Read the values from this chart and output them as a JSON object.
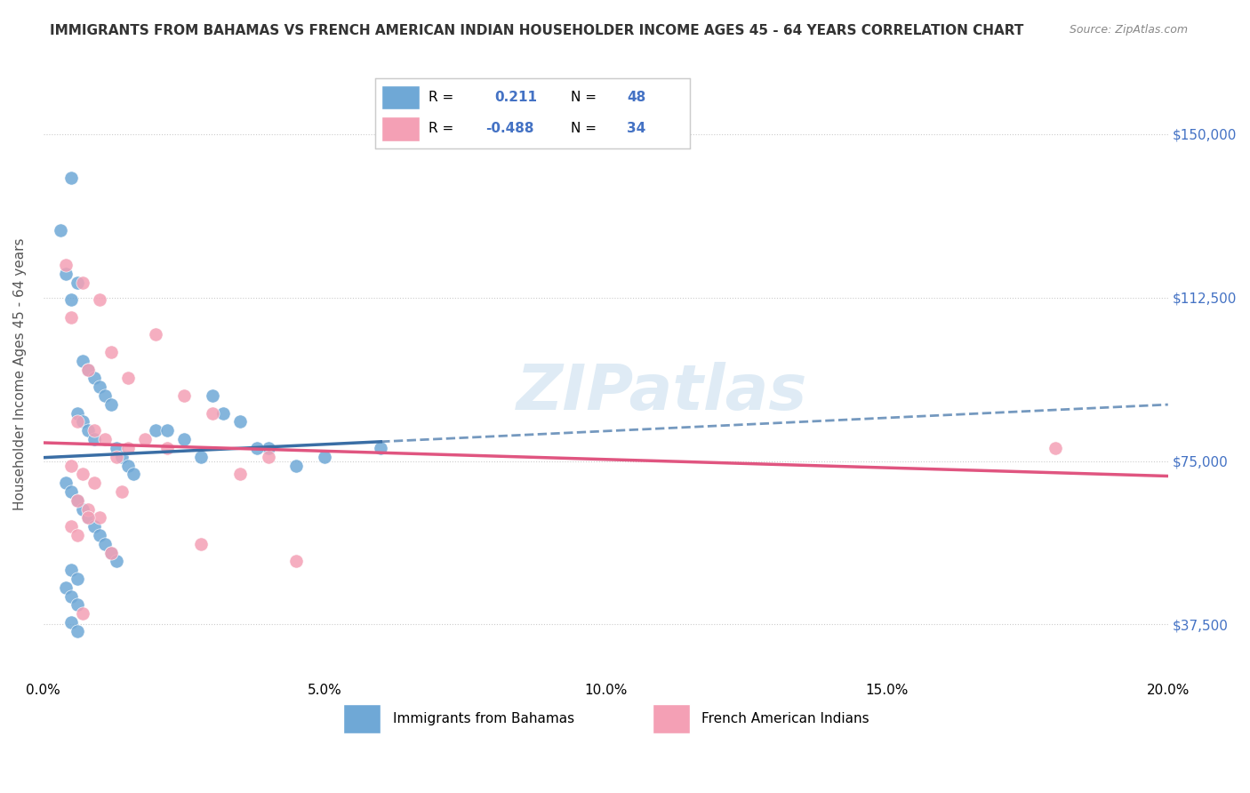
{
  "title": "IMMIGRANTS FROM BAHAMAS VS FRENCH AMERICAN INDIAN HOUSEHOLDER INCOME AGES 45 - 64 YEARS CORRELATION CHART",
  "source": "Source: ZipAtlas.com",
  "ylabel": "Householder Income Ages 45 - 64 years",
  "xlabel_ticks": [
    "0.0%",
    "5.0%",
    "10.0%",
    "15.0%",
    "20.0%"
  ],
  "xlabel_vals": [
    0.0,
    5.0,
    10.0,
    15.0,
    20.0
  ],
  "yticks": [
    37500,
    75000,
    112500,
    150000
  ],
  "ytick_labels": [
    "$37,500",
    "$75,000",
    "$112,500",
    "$150,000"
  ],
  "xmin": 0.0,
  "xmax": 20.0,
  "ymin": 25000,
  "ymax": 165000,
  "blue_R": 0.211,
  "blue_N": 48,
  "pink_R": -0.488,
  "pink_N": 34,
  "blue_color": "#6fa8d6",
  "pink_color": "#f4a0b5",
  "blue_line_color": "#3a6ea5",
  "pink_line_color": "#e05580",
  "watermark": "ZIPatlas",
  "background_color": "#ffffff",
  "grid_color": "#cccccc",
  "title_color": "#333333",
  "axis_label_color": "#555555",
  "blue_scatter_x": [
    0.5,
    0.3,
    0.4,
    0.6,
    0.5,
    0.7,
    0.8,
    0.9,
    1.0,
    1.1,
    1.2,
    0.6,
    0.7,
    0.8,
    0.9,
    1.3,
    1.4,
    1.5,
    1.6,
    2.0,
    2.5,
    3.0,
    3.5,
    4.0,
    5.0,
    6.0,
    0.4,
    0.5,
    0.6,
    0.7,
    0.8,
    0.9,
    1.0,
    1.1,
    1.2,
    1.3,
    0.5,
    0.6,
    2.2,
    2.8,
    3.8,
    4.5,
    0.4,
    0.5,
    0.6,
    3.2,
    0.5,
    0.6
  ],
  "blue_scatter_y": [
    140000,
    128000,
    118000,
    116000,
    112000,
    98000,
    96000,
    94000,
    92000,
    90000,
    88000,
    86000,
    84000,
    82000,
    80000,
    78000,
    76000,
    74000,
    72000,
    82000,
    80000,
    90000,
    84000,
    78000,
    76000,
    78000,
    70000,
    68000,
    66000,
    64000,
    62000,
    60000,
    58000,
    56000,
    54000,
    52000,
    50000,
    48000,
    82000,
    76000,
    78000,
    74000,
    46000,
    44000,
    42000,
    86000,
    38000,
    36000
  ],
  "pink_scatter_x": [
    0.4,
    0.5,
    0.7,
    1.0,
    1.2,
    0.8,
    1.5,
    2.0,
    2.5,
    3.0,
    0.6,
    0.9,
    1.1,
    1.3,
    1.8,
    2.2,
    3.5,
    4.0,
    0.5,
    0.7,
    0.9,
    1.4,
    0.6,
    0.8,
    1.0,
    1.5,
    2.8,
    18.0,
    0.5,
    0.6,
    0.8,
    1.2,
    4.5,
    0.7
  ],
  "pink_scatter_y": [
    120000,
    108000,
    116000,
    112000,
    100000,
    96000,
    94000,
    104000,
    90000,
    86000,
    84000,
    82000,
    80000,
    76000,
    80000,
    78000,
    72000,
    76000,
    74000,
    72000,
    70000,
    68000,
    66000,
    64000,
    62000,
    78000,
    56000,
    78000,
    60000,
    58000,
    62000,
    54000,
    52000,
    40000
  ]
}
